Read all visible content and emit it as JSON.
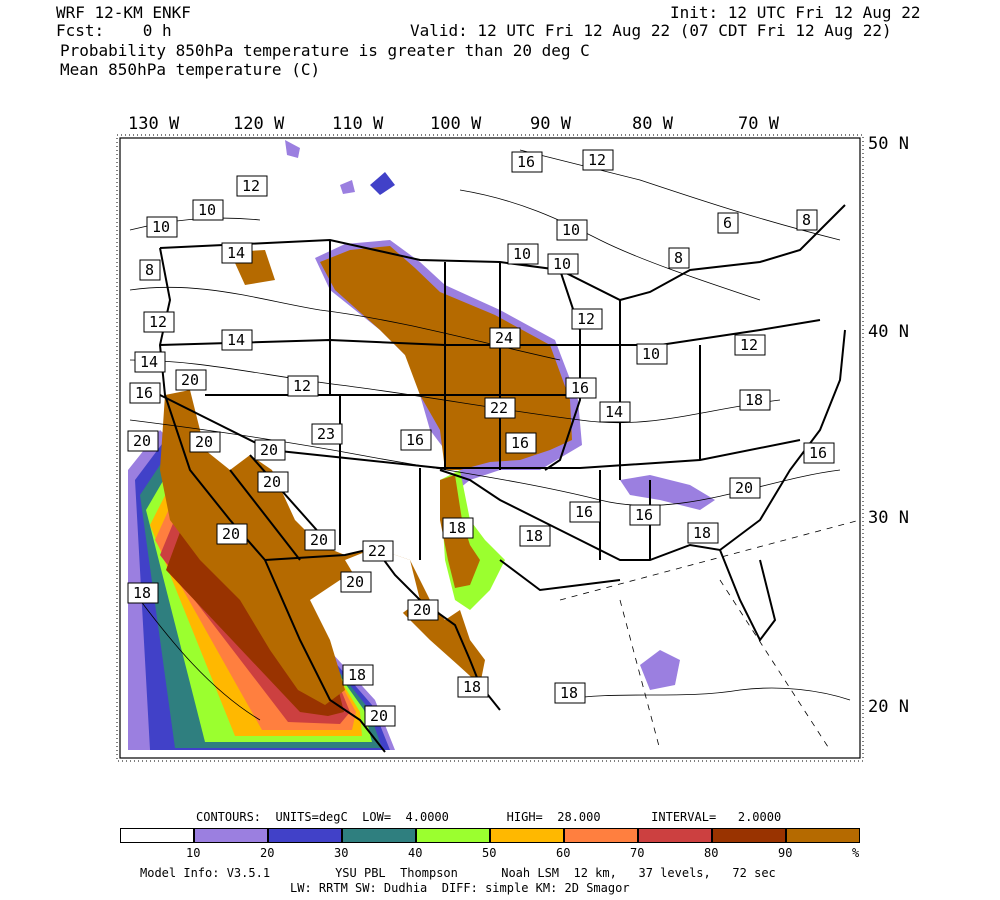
{
  "header": {
    "model": "WRF 12-KM ENKF",
    "fcst": "Fcst:    0 h",
    "init": "Init: 12 UTC Fri 12 Aug 22",
    "valid": "Valid: 12 UTC Fri 12 Aug 22 (07 CDT Fri 12 Aug 22)",
    "title1": "Probability 850hPa temperature is greater than 20 deg C",
    "title2": "Mean 850hPa temperature (C)"
  },
  "longitude_labels": [
    "130 W",
    "120 W",
    "110 W",
    "100 W",
    "90 W",
    "80 W",
    "70 W"
  ],
  "latitude_labels": [
    "50 N",
    "40 N",
    "30 N",
    "20 N"
  ],
  "contour_labels": [
    "16",
    "12",
    "12",
    "10",
    "10",
    "10",
    "8",
    "14",
    "10",
    "10",
    "8",
    "6",
    "8",
    "12",
    "12",
    "14",
    "24",
    "10",
    "12",
    "14",
    "16",
    "20",
    "12",
    "22",
    "16",
    "16",
    "14",
    "18",
    "20",
    "20",
    "20",
    "16",
    "23",
    "20",
    "16",
    "16",
    "20",
    "20",
    "20",
    "18",
    "18",
    "16",
    "22",
    "20",
    "20",
    "18",
    "18",
    "18",
    "18",
    "20",
    "18"
  ],
  "colors": {
    "p10": "#9b7fe0",
    "p20": "#4141c8",
    "p30": "#2f7f7f",
    "p40": "#9bff2f",
    "p50": "#ffb800",
    "p60": "#ff7f3f",
    "p70": "#cc4040",
    "p80": "#993300",
    "p90": "#b56a00"
  },
  "colorbar": {
    "contours_line": "CONTOURS:  UNITS=degC  LOW=  4.0000        HIGH=  28.000       INTERVAL=   2.0000",
    "tick_labels": [
      "10",
      "20",
      "30",
      "40",
      "50",
      "60",
      "70",
      "80",
      "90",
      "%"
    ]
  },
  "model_info": {
    "line1": "Model Info: V3.5.1         YSU PBL  Thompson      Noah LSM  12 km,   37 levels,   72 sec",
    "line2": "LW: RRTM SW: Dudhia  DIFF: simple KM: 2D Smagor"
  }
}
